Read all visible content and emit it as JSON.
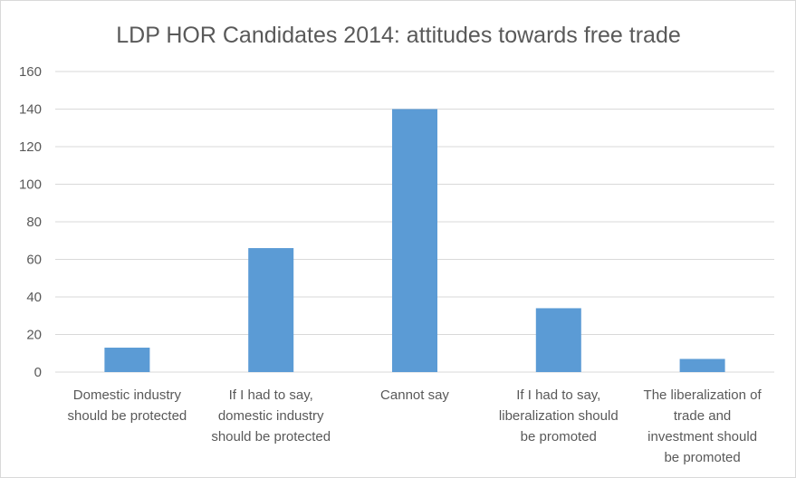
{
  "chart_data": {
    "type": "bar",
    "title": "LDP HOR Candidates 2014: attitudes towards free trade",
    "xlabel": "",
    "ylabel": "",
    "ylim": [
      0,
      160
    ],
    "yticks": [
      0,
      20,
      40,
      60,
      80,
      100,
      120,
      140,
      160
    ],
    "grid": true,
    "legend": "none",
    "bar_color": "#5b9bd5",
    "categories": [
      [
        "Domestic industry",
        "should be protected"
      ],
      [
        "If I had to say,",
        "domestic industry",
        "should be protected"
      ],
      [
        "Cannot say"
      ],
      [
        "If I had to say,",
        "liberalization should",
        "be promoted"
      ],
      [
        "The liberalization of",
        "trade and",
        "investment should",
        "be promoted"
      ]
    ],
    "values": [
      13,
      66,
      140,
      34,
      7
    ]
  }
}
